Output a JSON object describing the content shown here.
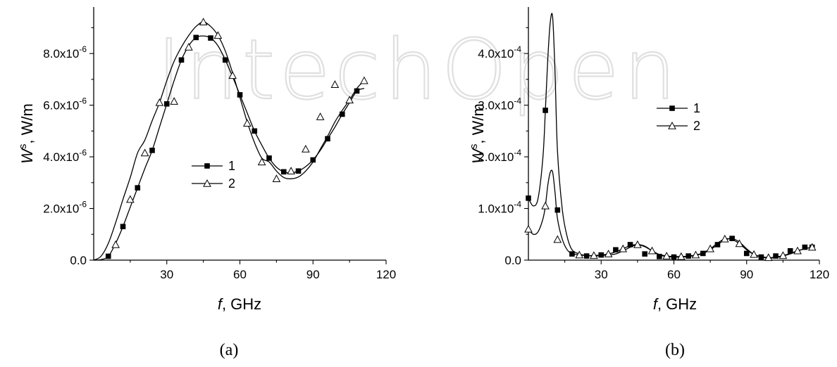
{
  "watermark": "IntechOpen",
  "chart_data": [
    {
      "type": "line",
      "panel_label": "(a)",
      "xlabel": {
        "symbol": "f",
        "unit": ",  GHz"
      },
      "ylabel": {
        "symbol": "W",
        "sup": "s",
        "unit": ", W/m"
      },
      "xlim": [
        0,
        120
      ],
      "ylim": [
        0,
        9.8e-06
      ],
      "x_ticks": [
        30,
        60,
        90,
        120
      ],
      "x_tick_labels": [
        "30",
        "60",
        "90",
        "120"
      ],
      "y_ticks": [
        0,
        2e-06,
        4e-06,
        6e-06,
        8e-06
      ],
      "y_tick_labels": [
        {
          "mant": "0.0",
          "exp": ""
        },
        {
          "mant": "2.0x10",
          "exp": "-6"
        },
        {
          "mant": "4.0x10",
          "exp": "-6"
        },
        {
          "mant": "6.0x10",
          "exp": "-6"
        },
        {
          "mant": "8.0x10",
          "exp": "-6"
        }
      ],
      "legend_position": "center",
      "series": [
        {
          "name": "1",
          "marker": "filled-square",
          "x": [
            0,
            3,
            6,
            9,
            12,
            15,
            18,
            21,
            24,
            27,
            30,
            33,
            36,
            39,
            42,
            45,
            48,
            51,
            54,
            57,
            60,
            63,
            66,
            69,
            72,
            75,
            78,
            81,
            84,
            87,
            90,
            93,
            96,
            99,
            102,
            105,
            108,
            111
          ],
          "y": [
            0,
            2e-08,
            1.5e-07,
            6.5e-07,
            1.3e-06,
            2.05e-06,
            2.8e-06,
            3.55e-06,
            4.25e-06,
            5.15e-06,
            6.05e-06,
            6.95e-06,
            7.75e-06,
            8.3e-06,
            8.62e-06,
            8.68e-06,
            8.6e-06,
            8.3e-06,
            7.75e-06,
            7.1e-06,
            6.4e-06,
            5.7e-06,
            5e-06,
            4.45e-06,
            3.95e-06,
            3.6e-06,
            3.42e-06,
            3.38e-06,
            3.45e-06,
            3.62e-06,
            3.88e-06,
            4.25e-06,
            4.7e-06,
            5.15e-06,
            5.65e-06,
            6.1e-06,
            6.55e-06,
            6.65e-06
          ],
          "marker_x": [
            6,
            12,
            18,
            24,
            30,
            36,
            42,
            48,
            54,
            60,
            66,
            72,
            78,
            84,
            90,
            96,
            102,
            108
          ],
          "marker_y": [
            1.5e-07,
            1.3e-06,
            2.8e-06,
            4.25e-06,
            6.05e-06,
            7.75e-06,
            8.62e-06,
            8.6e-06,
            7.75e-06,
            6.4e-06,
            5e-06,
            3.95e-06,
            3.42e-06,
            3.45e-06,
            3.88e-06,
            4.7e-06,
            5.65e-06,
            6.55e-06
          ]
        },
        {
          "name": "2",
          "marker": "open-triangle",
          "x": [
            0,
            3,
            6,
            9,
            12,
            15,
            18,
            21,
            24,
            27,
            30,
            33,
            36,
            39,
            42,
            45,
            48,
            51,
            54,
            57,
            60,
            63,
            66,
            69,
            72,
            75,
            78,
            81,
            84,
            87,
            90,
            93,
            96,
            99,
            102,
            105,
            108,
            111
          ],
          "y": [
            0,
            1.5e-07,
            6.5e-07,
            1.45e-06,
            2.35e-06,
            3.2e-06,
            4.15e-06,
            4.65e-06,
            5.4e-06,
            6.1e-06,
            6.95e-06,
            7.7e-06,
            8.25e-06,
            8.7e-06,
            9.05e-06,
            9.22e-06,
            9.05e-06,
            8.7e-06,
            8.1e-06,
            7.25e-06,
            6.3e-06,
            5.35e-06,
            4.55e-06,
            3.95e-06,
            3.8e-06,
            3.45e-06,
            3.2e-06,
            3.15e-06,
            3.22e-06,
            3.45e-06,
            3.8e-06,
            4.3e-06,
            4.8e-06,
            5.35e-06,
            5.8e-06,
            6.2e-06,
            6.65e-06,
            6.95e-06
          ],
          "marker_x": [
            9,
            15,
            21,
            27,
            33,
            39,
            45,
            51,
            57,
            63,
            69,
            75,
            81,
            87,
            93,
            99,
            105,
            111
          ],
          "marker_y": [
            6e-07,
            2.35e-06,
            4.15e-06,
            6.1e-06,
            6.15e-06,
            8.25e-06,
            9.22e-06,
            8.7e-06,
            7.15e-06,
            5.3e-06,
            3.8e-06,
            3.15e-06,
            3.45e-06,
            4.3e-06,
            5.55e-06,
            6.8e-06,
            6.2e-06,
            6.95e-06
          ]
        }
      ]
    },
    {
      "type": "line",
      "panel_label": "(b)",
      "xlabel": {
        "symbol": "f",
        "unit": ",  GHz"
      },
      "ylabel": {
        "symbol": "W",
        "sup": "s",
        "unit": ", W/m"
      },
      "xlim": [
        0,
        120
      ],
      "ylim": [
        0,
        0.00049
      ],
      "x_ticks": [
        30,
        60,
        90,
        120
      ],
      "x_tick_labels": [
        "30",
        "60",
        "90",
        "120"
      ],
      "y_ticks": [
        0,
        0.0001,
        0.0002,
        0.0003,
        0.0004
      ],
      "y_tick_labels": [
        {
          "mant": "0.0",
          "exp": ""
        },
        {
          "mant": "1.0x10",
          "exp": "-4"
        },
        {
          "mant": "2.0x10",
          "exp": "-4"
        },
        {
          "mant": "3.0x10",
          "exp": "-4"
        },
        {
          "mant": "4.0x10",
          "exp": "-4"
        }
      ],
      "legend_position": "center",
      "series": [
        {
          "name": "1",
          "marker": "filled-square",
          "x": [
            0,
            2,
            4,
            6,
            7,
            8,
            9,
            10,
            11,
            12,
            14,
            16,
            18,
            21,
            24,
            27,
            30,
            33,
            36,
            39,
            42,
            45,
            48,
            51,
            54,
            57,
            60,
            63,
            66,
            69,
            72,
            75,
            78,
            81,
            84,
            87,
            90,
            93,
            96,
            99,
            102,
            105,
            108,
            111,
            114,
            117
          ],
          "y": [
            0.00012,
            0.000105,
            0.00012,
            0.0002,
            0.00029,
            0.00039,
            0.00046,
            0.00047,
            0.00036,
            0.00021,
            9.7e-05,
            4.5e-05,
            2e-05,
            1.2e-05,
            9e-06,
            8e-06,
            9e-06,
            1e-05,
            1.2e-05,
            1.8e-05,
            2.5e-05,
            3e-05,
            2.7e-05,
            1.8e-05,
            1e-05,
            7e-06,
            6e-06,
            6e-06,
            7e-06,
            9e-06,
            1.3e-05,
            2e-05,
            3e-05,
            3.9e-05,
            4.2e-05,
            3.5e-05,
            2.2e-05,
            1.1e-05,
            6e-06,
            4e-06,
            5e-06,
            8e-06,
            1.2e-05,
            1.8e-05,
            2.2e-05,
            2.5e-05
          ],
          "marker_x": [
            0,
            7,
            12,
            18,
            24,
            30,
            36,
            42,
            48,
            54,
            60,
            66,
            72,
            78,
            84,
            90,
            96,
            102,
            108,
            114,
            117
          ],
          "marker_y": [
            0.00012,
            0.00029,
            9.7e-05,
            1.2e-05,
            8e-06,
            1e-05,
            2e-05,
            3e-05,
            1.2e-05,
            7e-06,
            6e-06,
            8e-06,
            1.3e-05,
            3e-05,
            4.2e-05,
            1.3e-05,
            6e-06,
            8e-06,
            1.8e-05,
            2.5e-05,
            2.5e-05
          ]
        },
        {
          "name": "2",
          "marker": "open-triangle",
          "x": [
            0,
            2,
            4,
            6,
            7,
            8,
            9,
            10,
            11,
            12,
            14,
            16,
            18,
            21,
            24,
            27,
            30,
            33,
            36,
            39,
            42,
            45,
            48,
            51,
            54,
            57,
            60,
            63,
            66,
            69,
            72,
            75,
            78,
            81,
            84,
            87,
            90,
            93,
            96,
            99,
            102,
            105,
            108,
            111,
            114,
            117
          ],
          "y": [
            6e-05,
            5e-05,
            5.5e-05,
            8e-05,
            0.000105,
            0.000145,
            0.00017,
            0.00017,
            0.00013,
            8e-05,
            4e-05,
            2e-05,
            1.3e-05,
            1e-05,
            9e-06,
            9e-06,
            1e-05,
            1.2e-05,
            1.6e-05,
            2.2e-05,
            2.8e-05,
            3e-05,
            2.6e-05,
            1.8e-05,
            1.1e-05,
            8e-06,
            7e-06,
            7e-06,
            8e-06,
            1e-05,
            1.4e-05,
            2.2e-05,
            3.3e-05,
            4.1e-05,
            4e-05,
            3.2e-05,
            2e-05,
            1.1e-05,
            7e-06,
            5e-06,
            6e-06,
            9e-06,
            1.3e-05,
            1.8e-05,
            2.2e-05,
            2.5e-05
          ],
          "marker_x": [
            0,
            7,
            12,
            21,
            27,
            33,
            39,
            45,
            51,
            57,
            63,
            69,
            75,
            81,
            87,
            93,
            99,
            105,
            111,
            117
          ],
          "marker_y": [
            6e-05,
            0.000105,
            4e-05,
            1e-05,
            9e-06,
            1.2e-05,
            2.2e-05,
            3e-05,
            1.8e-05,
            8e-06,
            7e-06,
            1e-05,
            2.2e-05,
            4.1e-05,
            3.2e-05,
            1.1e-05,
            5e-06,
            9e-06,
            1.8e-05,
            2.5e-05
          ]
        }
      ]
    }
  ]
}
